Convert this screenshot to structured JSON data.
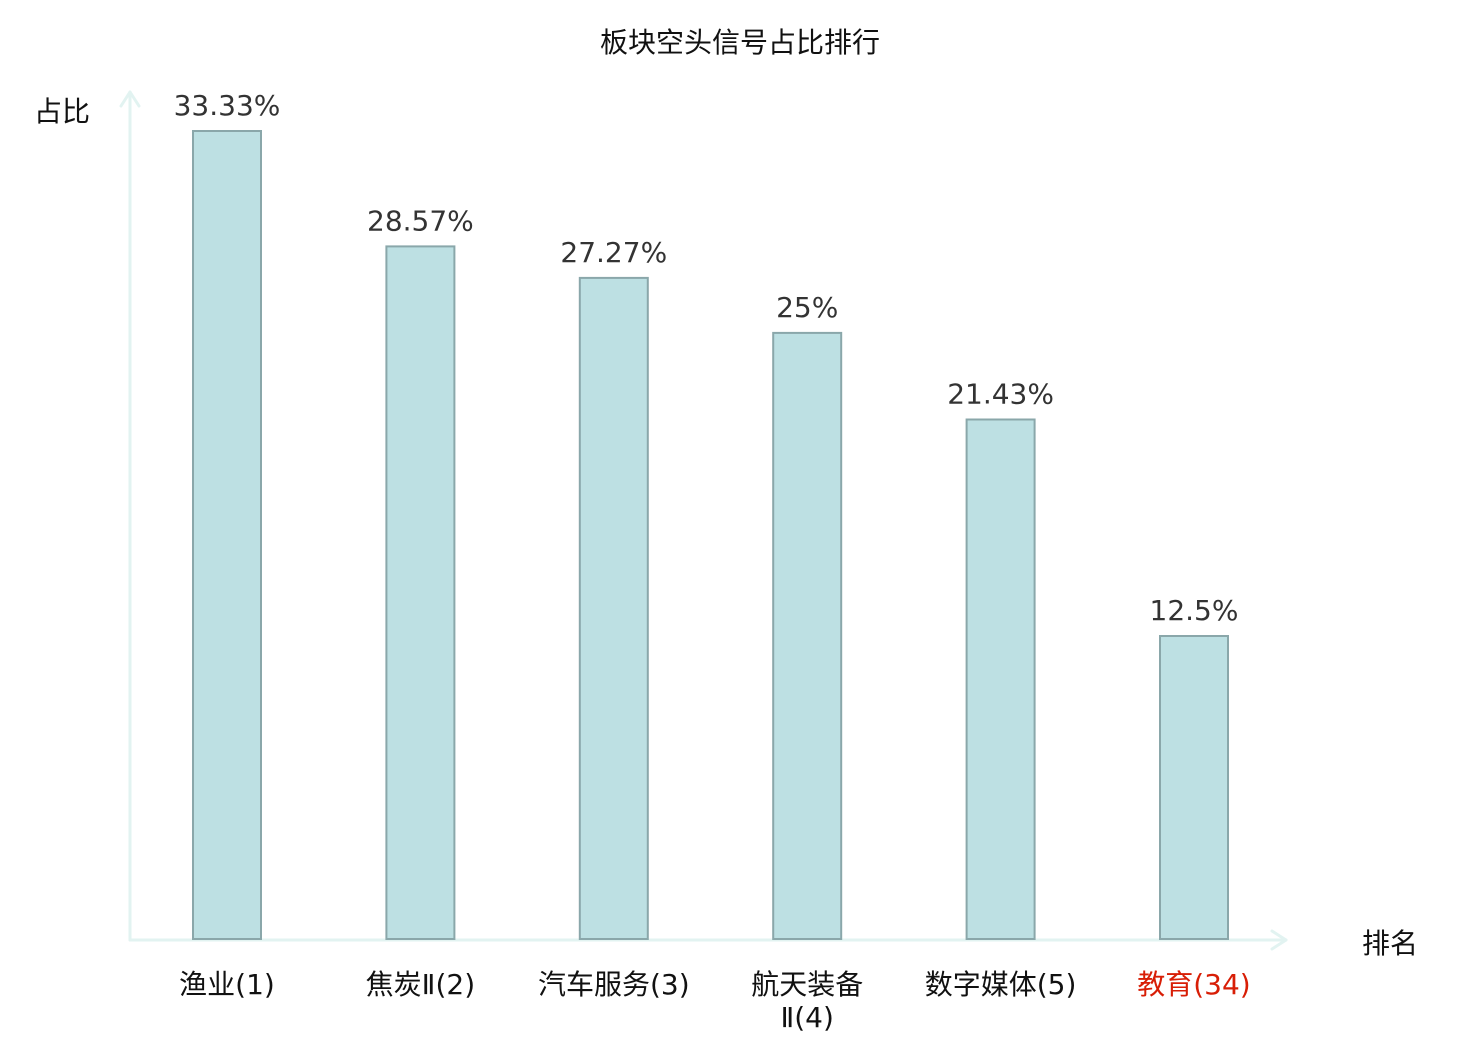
{
  "chart_data": {
    "type": "bar",
    "title": "板块空头信号占比排行",
    "ylabel": "占比",
    "xlabel": "排名",
    "categories": [
      "渔业(1)",
      "焦炭Ⅱ(2)",
      "汽车服务(3)",
      "航天装备Ⅱ(4)",
      "数字媒体(5)",
      "教育(34)"
    ],
    "category_lines": [
      [
        "渔业(1)"
      ],
      [
        "焦炭Ⅱ(2)"
      ],
      [
        "汽车服务(3)"
      ],
      [
        "航天装备",
        "Ⅱ(4)"
      ],
      [
        "数字媒体(5)"
      ],
      [
        "教育(34)"
      ]
    ],
    "values": [
      33.33,
      28.57,
      27.27,
      25,
      21.43,
      12.5
    ],
    "value_labels": [
      "33.33%",
      "28.57%",
      "27.27%",
      "25%",
      "21.43%",
      "12.5%"
    ],
    "highlight_index": 5,
    "ylim": [
      0,
      33.33
    ],
    "grid": false,
    "legend": "none",
    "colors": {
      "bar_fill": "#bde0e3",
      "bar_stroke": "#8aa7aa",
      "axis": "#e2f3f1",
      "highlight_label": "#d81e06",
      "label": "#111111"
    }
  }
}
